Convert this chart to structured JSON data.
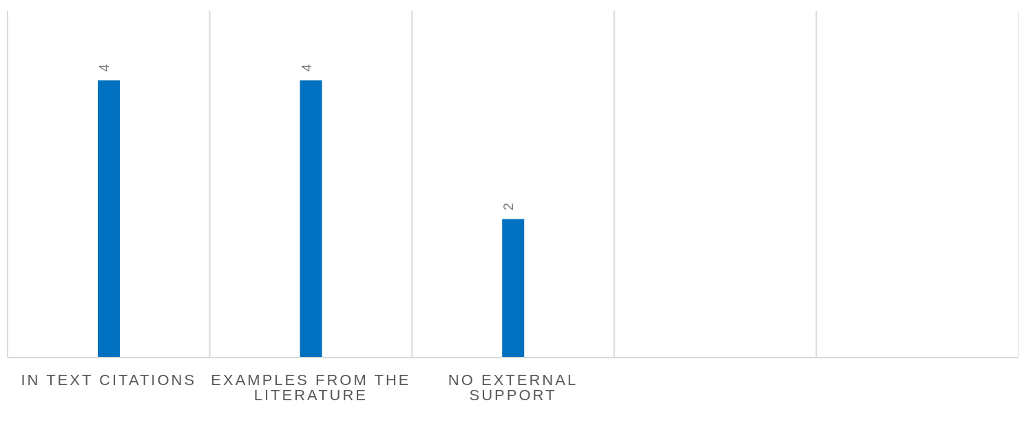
{
  "chart_data": {
    "type": "bar",
    "categories": [
      "IN TEXT CITATIONS",
      "EXAMPLES FROM THE LITERATURE",
      "NO EXTERNAL SUPPORT",
      null,
      null
    ],
    "values": [
      4,
      4,
      2,
      null,
      null
    ],
    "color": "#0070c0",
    "ylim": [
      0,
      5
    ],
    "grid": "x",
    "data_labels": true,
    "tick_labels": "x"
  }
}
